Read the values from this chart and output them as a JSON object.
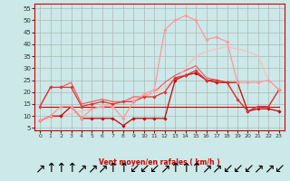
{
  "background_color": "#cce8e8",
  "grid_color": "#aaaaaa",
  "xlabel": "Vent moyen/en rafales ( km/h )",
  "xlim": [
    -0.5,
    23.5
  ],
  "ylim": [
    4,
    57
  ],
  "yticks": [
    5,
    10,
    15,
    20,
    25,
    30,
    35,
    40,
    45,
    50,
    55
  ],
  "xticks": [
    0,
    1,
    2,
    3,
    4,
    5,
    6,
    7,
    8,
    9,
    10,
    11,
    12,
    13,
    14,
    15,
    16,
    17,
    18,
    19,
    20,
    21,
    22,
    23
  ],
  "series": [
    {
      "x": [
        0,
        1,
        2,
        3,
        4,
        5,
        6,
        7,
        8,
        9,
        10,
        11,
        12,
        13,
        14,
        15,
        16,
        17,
        18,
        19,
        20,
        21,
        22,
        23
      ],
      "y": [
        8,
        10,
        10,
        14,
        9,
        9,
        9,
        9,
        6,
        9,
        9,
        9,
        9,
        25,
        27,
        28,
        25,
        24,
        24,
        24,
        12,
        13,
        13,
        12
      ],
      "color": "#cc0000",
      "lw": 0.9,
      "marker": "D",
      "ms": 1.8
    },
    {
      "x": [
        0,
        1,
        2,
        3,
        4,
        5,
        6,
        7,
        8,
        9,
        10,
        11,
        12,
        13,
        14,
        15,
        16,
        17,
        18,
        19,
        20,
        21,
        22,
        23
      ],
      "y": [
        14,
        14,
        14,
        14,
        14,
        14,
        14,
        14,
        14,
        14,
        14,
        14,
        14,
        14,
        14,
        14,
        14,
        14,
        14,
        14,
        14,
        14,
        14,
        14
      ],
      "color": "#cc0000",
      "lw": 0.8,
      "marker": null,
      "ms": 0
    },
    {
      "x": [
        0,
        1,
        2,
        3,
        4,
        5,
        6,
        7,
        8,
        9,
        10,
        11,
        12,
        13,
        14,
        15,
        16,
        17,
        18,
        19,
        20,
        21,
        22,
        23
      ],
      "y": [
        14,
        22,
        22,
        22,
        14,
        15,
        16,
        15,
        16,
        16,
        18,
        18,
        20,
        26,
        27,
        29,
        25,
        25,
        24,
        17,
        12,
        14,
        14,
        21
      ],
      "color": "#dd3333",
      "lw": 0.9,
      "marker": "D",
      "ms": 1.8
    },
    {
      "x": [
        0,
        1,
        2,
        3,
        4,
        5,
        6,
        7,
        8,
        9,
        10,
        11,
        12,
        13,
        14,
        15,
        16,
        17,
        18,
        19,
        20,
        21,
        22,
        23
      ],
      "y": [
        14,
        22,
        22,
        24,
        15,
        16,
        17,
        16,
        16,
        18,
        18,
        20,
        24,
        27,
        29,
        31,
        26,
        25,
        24,
        17,
        12,
        14,
        14,
        21
      ],
      "color": "#ee5555",
      "lw": 0.8,
      "marker": null,
      "ms": 0
    },
    {
      "x": [
        0,
        1,
        2,
        3,
        4,
        5,
        6,
        7,
        8,
        9,
        10,
        11,
        12,
        13,
        14,
        15,
        16,
        17,
        18,
        19,
        20,
        21,
        22,
        23
      ],
      "y": [
        8,
        10,
        14,
        14,
        9,
        13,
        14,
        14,
        9,
        16,
        19,
        21,
        46,
        50,
        52,
        50,
        42,
        43,
        41,
        24,
        24,
        24,
        25,
        21
      ],
      "color": "#ff9999",
      "lw": 0.9,
      "marker": "D",
      "ms": 1.8
    },
    {
      "x": [
        0,
        1,
        2,
        3,
        4,
        5,
        6,
        7,
        8,
        9,
        10,
        11,
        12,
        13,
        14,
        15,
        16,
        17,
        18,
        19,
        20,
        21,
        22,
        23
      ],
      "y": [
        8,
        9,
        10,
        11,
        12,
        13,
        14,
        15,
        16,
        17,
        18,
        20,
        22,
        25,
        30,
        35,
        37,
        38,
        39,
        38,
        37,
        35,
        25,
        21
      ],
      "color": "#ffbbbb",
      "lw": 0.8,
      "marker": null,
      "ms": 0
    }
  ],
  "wind_arrows": [
    "↗",
    "↑",
    "↑",
    "↑",
    "↗",
    "↗",
    "↗",
    "↑",
    "↑",
    "↙",
    "↙",
    "↙",
    "↗",
    "↑",
    "↑",
    "↑",
    "↗",
    "↗",
    "↙",
    "↙",
    "↙",
    "↗",
    "↗",
    "↙"
  ]
}
